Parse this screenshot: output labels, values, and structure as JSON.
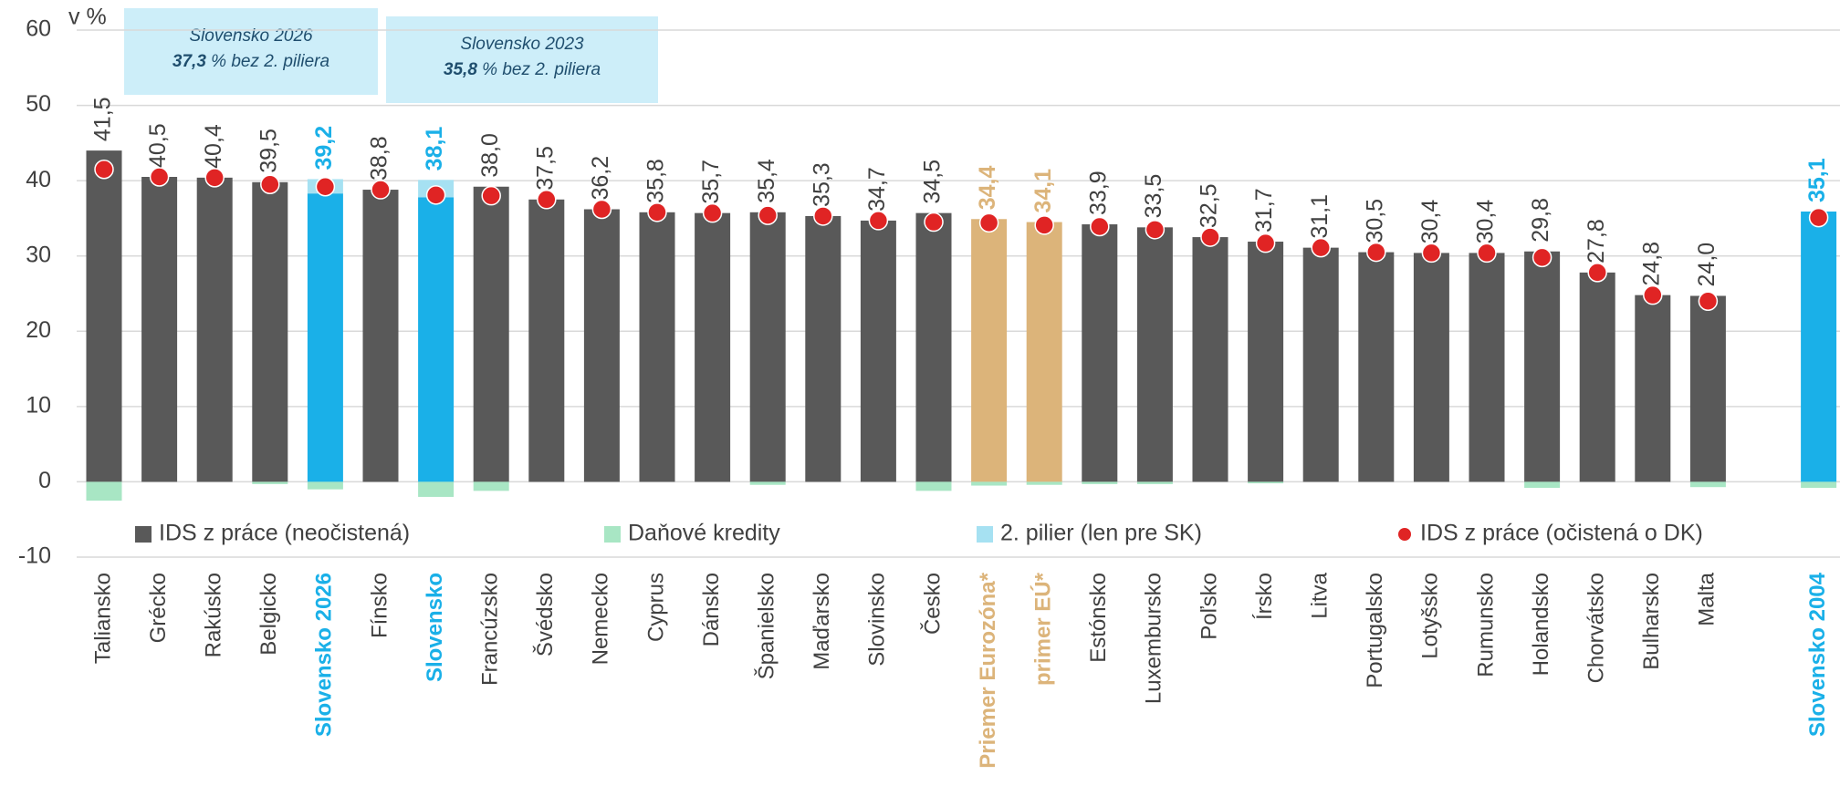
{
  "chart_data": {
    "type": "bar",
    "y_label": "v %",
    "categories": [
      "Taliansko",
      "Grécko",
      "Rakúsko",
      "Belgicko",
      "Slovensko 2026",
      "Fínsko",
      "Slovensko",
      "Francúzsko",
      "Švédsko",
      "Nemecko",
      "Cyprus",
      "Dánsko",
      "Španielsko",
      "Maďarsko",
      "Slovinsko",
      "Česko",
      "Priemer Eurozóna*",
      "primer EÚ*",
      "Estónsko",
      "Luxembursko",
      "Poľsko",
      "Írsko",
      "Litva",
      "Portugalsko",
      "Lotyšsko",
      "Rumunsko",
      "Holandsko",
      "Chorvátsko",
      "Bulharsko",
      "Malta",
      null,
      "Slovensko 2004"
    ],
    "series": [
      {
        "name": "IDS z práce (neočistená)",
        "color": "#595959",
        "values": [
          44.0,
          40.5,
          40.4,
          39.8,
          38.3,
          38.8,
          37.8,
          39.2,
          37.5,
          36.2,
          35.8,
          35.7,
          35.8,
          35.3,
          34.7,
          35.7,
          34.9,
          34.5,
          34.2,
          33.8,
          32.5,
          31.9,
          31.1,
          30.5,
          30.4,
          30.4,
          30.6,
          27.8,
          24.8,
          24.7,
          null,
          35.9
        ],
        "colors": [
          "#595959",
          "#595959",
          "#595959",
          "#595959",
          "#1ab0e8",
          "#595959",
          "#1ab0e8",
          "#595959",
          "#595959",
          "#595959",
          "#595959",
          "#595959",
          "#595959",
          "#595959",
          "#595959",
          "#595959",
          "#dcb47a",
          "#dcb47a",
          "#595959",
          "#595959",
          "#595959",
          "#595959",
          "#595959",
          "#595959",
          "#595959",
          "#595959",
          "#595959",
          "#595959",
          "#595959",
          "#595959",
          null,
          "#1ab0e8"
        ]
      },
      {
        "name": "Daňové kredity",
        "color": "#a8e6c4",
        "values": [
          -2.5,
          0,
          0,
          -0.3,
          -1.0,
          0,
          -2.0,
          -1.2,
          0,
          0,
          0,
          0,
          -0.4,
          0,
          0,
          -1.2,
          -0.5,
          -0.4,
          -0.3,
          -0.3,
          0,
          -0.2,
          0,
          0,
          0,
          0,
          -0.8,
          0,
          0,
          -0.7,
          null,
          -0.8
        ]
      },
      {
        "name": "2. pilier (len pre SK)",
        "color": "#a6e1f2",
        "values": [
          null,
          null,
          null,
          null,
          1.9,
          null,
          2.3,
          null,
          null,
          null,
          null,
          null,
          null,
          null,
          null,
          null,
          null,
          null,
          null,
          null,
          null,
          null,
          null,
          null,
          null,
          null,
          null,
          null,
          null,
          null,
          null,
          null
        ]
      },
      {
        "name": "IDS z práce (očistená o DK)",
        "color": "#e02424",
        "marker": "dot",
        "values": [
          41.5,
          40.5,
          40.4,
          39.5,
          39.2,
          38.8,
          38.1,
          38.0,
          37.5,
          36.2,
          35.8,
          35.7,
          35.4,
          35.3,
          34.7,
          34.5,
          34.4,
          34.1,
          33.9,
          33.5,
          32.5,
          31.7,
          31.1,
          30.5,
          30.4,
          30.4,
          29.8,
          27.8,
          24.8,
          24.0,
          null,
          35.1
        ],
        "value_labels": [
          "41,5",
          "40,5",
          "40,4",
          "39,5",
          "39,2",
          "38,8",
          "38,1",
          "38,0",
          "37,5",
          "36,2",
          "35,8",
          "35,7",
          "35,4",
          "35,3",
          "34,7",
          "34,5",
          "34,4",
          "34,1",
          "33,9",
          "33,5",
          "32,5",
          "31,7",
          "31,1",
          "30,5",
          "30,4",
          "30,4",
          "29,8",
          "27,8",
          "24,8",
          "24,0",
          null,
          "35,1"
        ]
      }
    ],
    "ylim": [
      -10,
      60
    ],
    "yticks": [
      -10,
      0,
      10,
      20,
      30,
      40,
      50,
      60
    ],
    "grid": true,
    "annotations": [
      {
        "title": "Slovensko 2026",
        "value": "37,3",
        "text": "% bez 2. piliera"
      },
      {
        "title": "Slovensko 2023",
        "value": "35,8",
        "text": "% bez 2. piliera"
      }
    ]
  }
}
